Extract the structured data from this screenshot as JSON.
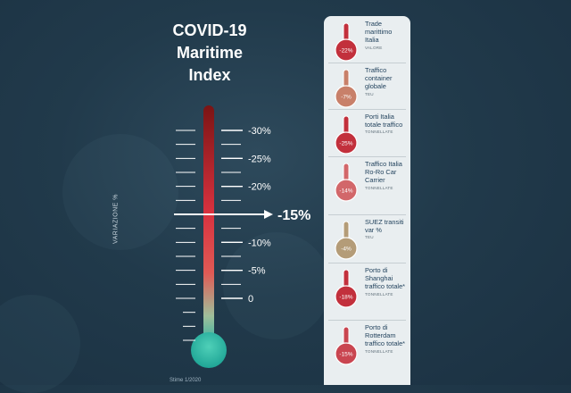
{
  "title": [
    "COVID-19",
    "Maritime",
    "Index"
  ],
  "y_axis_label": "VARIAZIONE %",
  "footer_note": "Stime 1/2020",
  "colors": {
    "background": "#213a4b",
    "panel": "#e9eef0",
    "text_dark": "#1e3f5a",
    "tube_top": "#7b1414",
    "tube_mid": "#d8323f",
    "tube_bottom": "#2fb3a3"
  },
  "chart_data": {
    "type": "thermometer",
    "title": "COVID-19 Maritime Index",
    "ylabel": "VARIAZIONE %",
    "ticks": [
      {
        "value": -30,
        "label": "-30%"
      },
      {
        "value": -25,
        "label": "-25%"
      },
      {
        "value": -20,
        "label": "-20%"
      },
      {
        "value": -10,
        "label": "-10%"
      },
      {
        "value": -5,
        "label": "-5%"
      },
      {
        "value": 0,
        "label": "0"
      }
    ],
    "ylim": [
      -30,
      0
    ],
    "indicator": {
      "value": -15,
      "label": "-15%"
    }
  },
  "panel": {
    "items": [
      {
        "value": -22,
        "label": "-22%",
        "name": "Trade marittimo Italia",
        "unit": "VALORE",
        "color": "#c2303c"
      },
      {
        "value": -7,
        "label": "-7%",
        "name": "Traffico container globale",
        "unit": "TEU",
        "color": "#c8806a"
      },
      {
        "value": -25,
        "label": "-25%",
        "name": "Porti Italia totale traffico",
        "unit": "TONNELLATE",
        "color": "#c2303c"
      },
      {
        "value": -14,
        "label": "-14%",
        "name": "Traffico Italia Ro-Ro Car Carrier",
        "unit": "TONNELLATE",
        "color": "#d2676a"
      },
      {
        "value": -4,
        "label": "-4%",
        "name": "SUEZ transiti var %",
        "unit": "TEU",
        "color": "#b49c78"
      },
      {
        "value": -18,
        "label": "-18%",
        "name": "Porto di Shanghai traffico totale*",
        "unit": "TONNELLATE",
        "color": "#c2303c"
      },
      {
        "value": -15,
        "label": "-15%",
        "name": "Porto di Rotterdam traffico totale*",
        "unit": "TONNELLATE",
        "color": "#c94550"
      }
    ]
  }
}
